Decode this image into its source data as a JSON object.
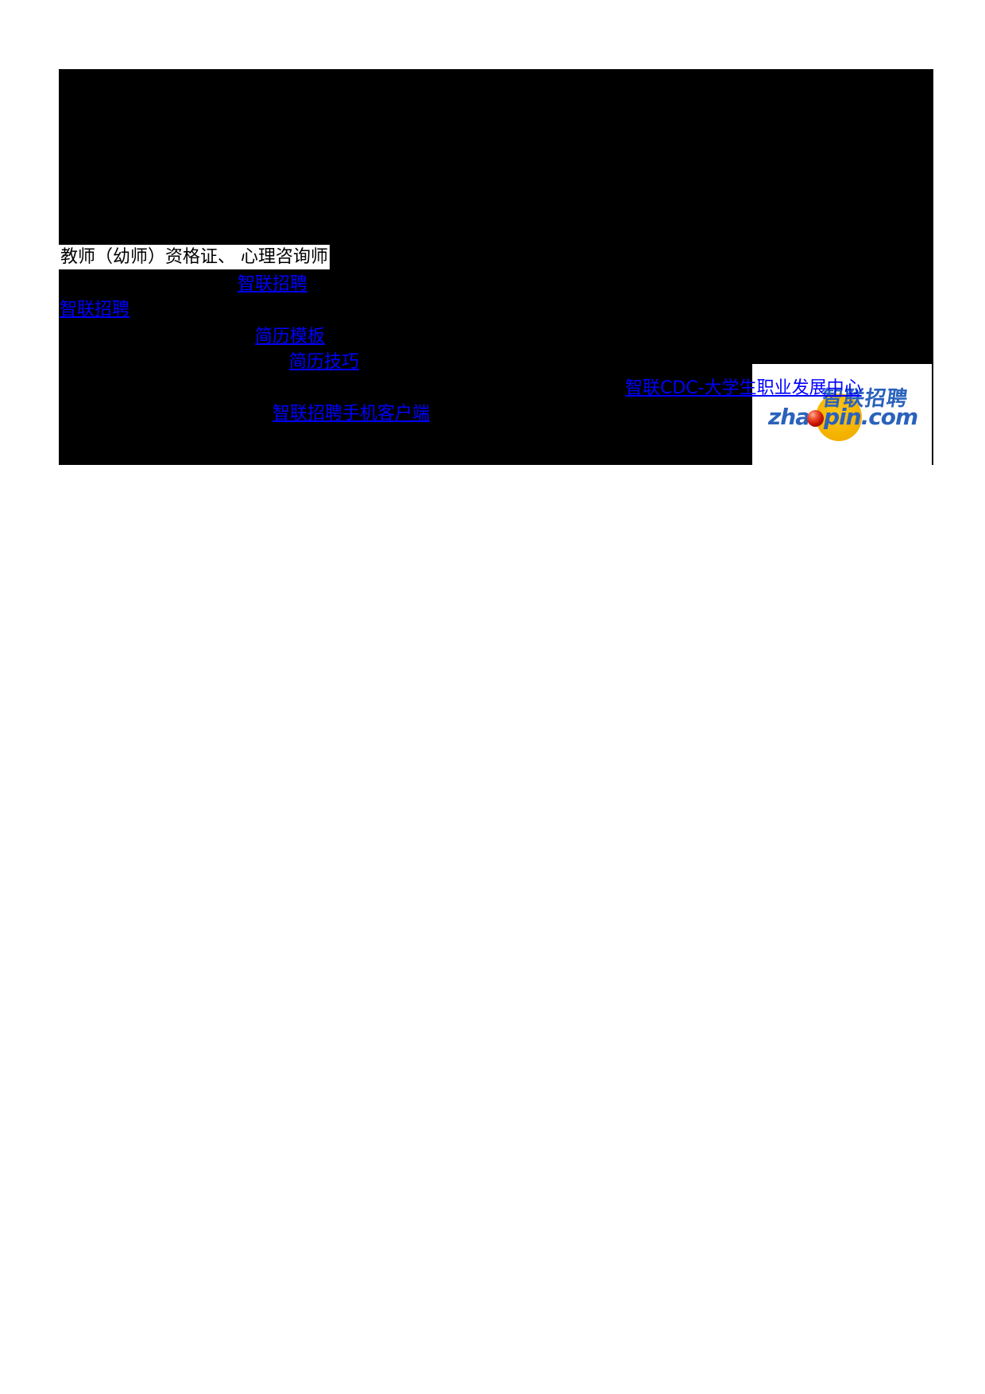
{
  "content": {
    "highlight_text": "教师（幼师）资格证、 心理咨询师",
    "links": [
      {
        "label": "智联招聘"
      },
      {
        "label": "智联招聘"
      },
      {
        "label": "简历模板"
      },
      {
        "label": "简历技巧"
      },
      {
        "label": "智联CDC-大学生职业发展中心"
      },
      {
        "label": "智联招聘手机客户端"
      }
    ]
  },
  "logo": {
    "cn_text": "智联招聘",
    "domain_prefix": "zha",
    "domain_suffix": "pin.com",
    "colors": {
      "link_blue": "#0000ff",
      "logo_blue": "#2a62bc",
      "circle_yellow": "#f5b300",
      "ball_red": "#c41200",
      "panel_black": "#000000",
      "highlight_bg": "#ffffff"
    }
  }
}
